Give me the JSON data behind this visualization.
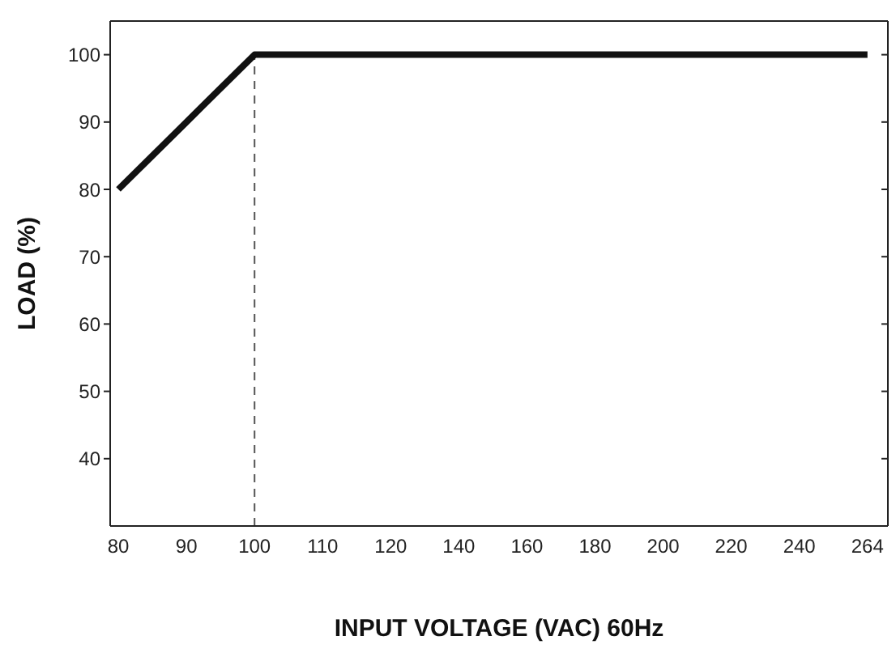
{
  "chart_data": {
    "type": "line",
    "xlabel": "INPUT VOLTAGE (VAC) 60Hz",
    "ylabel": "LOAD (%)",
    "categories": [
      "80",
      "90",
      "100",
      "110",
      "120",
      "140",
      "160",
      "180",
      "200",
      "220",
      "240",
      "264"
    ],
    "series": [
      {
        "color": "#111111",
        "values": [
          80,
          90,
          100,
          100,
          100,
          100,
          100,
          100,
          100,
          100,
          100,
          100
        ]
      }
    ],
    "ylim": [
      30,
      105
    ],
    "yticks": [
      40,
      50,
      60,
      70,
      80,
      90,
      100
    ],
    "marker": "none",
    "line_style": "solid",
    "ref_lines": [
      {
        "axis": "x",
        "value": "100",
        "color": "#555555",
        "line_style": "dashed"
      }
    ]
  }
}
